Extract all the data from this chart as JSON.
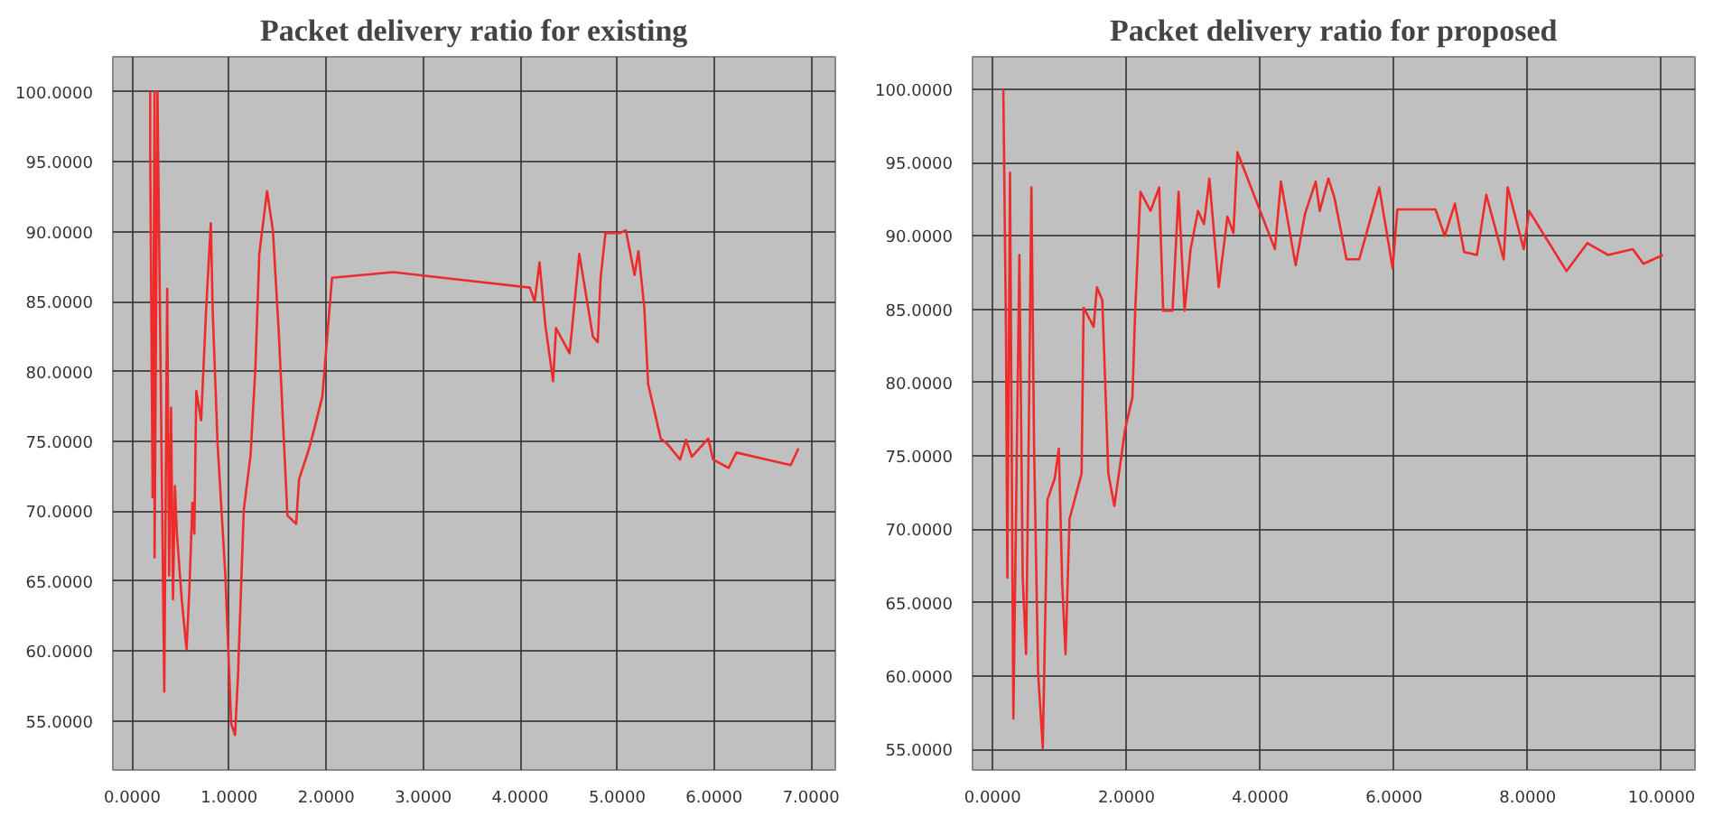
{
  "chart_data": [
    {
      "type": "line",
      "title": "Packet delivery ratio for existing",
      "grid": true,
      "marker": "none",
      "line_style": "solid",
      "xlim": [
        -0.2,
        7.25
      ],
      "ylim": [
        51.5,
        102.5
      ],
      "xticks": [
        {
          "value": 0,
          "label": "0.0000"
        },
        {
          "value": 1,
          "label": "1.0000"
        },
        {
          "value": 2,
          "label": "2.0000"
        },
        {
          "value": 3,
          "label": "3.0000"
        },
        {
          "value": 4,
          "label": "4.0000"
        },
        {
          "value": 5,
          "label": "5.0000"
        },
        {
          "value": 6,
          "label": "6.0000"
        },
        {
          "value": 7,
          "label": "7.0000"
        }
      ],
      "yticks": [
        {
          "value": 55,
          "label": "55.0000"
        },
        {
          "value": 60,
          "label": "60.0000"
        },
        {
          "value": 65,
          "label": "65.0000"
        },
        {
          "value": 70,
          "label": "70.0000"
        },
        {
          "value": 75,
          "label": "75.0000"
        },
        {
          "value": 80,
          "label": "80.0000"
        },
        {
          "value": 85,
          "label": "85.0000"
        },
        {
          "value": 90,
          "label": "90.0000"
        },
        {
          "value": 95,
          "label": "95.0000"
        },
        {
          "value": 100,
          "label": "100.0000"
        }
      ],
      "series": [
        {
          "color": "#ee2a2a",
          "x": [
            0.185,
            0.185,
            0.21,
            0.23,
            0.23,
            0.26,
            0.33,
            0.36,
            0.38,
            0.4,
            0.42,
            0.44,
            0.46,
            0.51,
            0.56,
            0.59,
            0.62,
            0.64,
            0.66,
            0.71,
            0.76,
            0.81,
            0.83,
            0.88,
            0.96,
            1.02,
            1.06,
            1.09,
            1.15,
            1.22,
            1.27,
            1.31,
            1.39,
            1.45,
            1.51,
            1.6,
            1.69,
            1.72,
            1.82,
            1.87,
            1.96,
            2.06,
            2.69,
            4.1,
            4.15,
            4.2,
            4.26,
            4.34,
            4.37,
            4.51,
            4.61,
            4.75,
            4.8,
            4.83,
            4.88,
            5.03,
            5.09,
            5.18,
            5.22,
            5.28,
            5.32,
            5.45,
            5.52,
            5.65,
            5.71,
            5.77,
            5.94,
            5.99,
            6.15,
            6.23,
            6.79,
            6.87
          ],
          "values": [
            100,
            95.7,
            71,
            100,
            66.7,
            100,
            57.1,
            85.9,
            65.4,
            77.4,
            63.7,
            71.8,
            68.4,
            63.7,
            60.1,
            64.6,
            70.6,
            68.4,
            78.6,
            76.5,
            84.2,
            90.6,
            84.2,
            74.8,
            65.4,
            54.8,
            54,
            58.2,
            70.1,
            74,
            80.3,
            88.4,
            92.9,
            90.1,
            82.9,
            69.7,
            69.1,
            72.3,
            74.4,
            75.7,
            78.2,
            86.7,
            87.1,
            86,
            85,
            87.8,
            83.3,
            79.3,
            83.1,
            81.3,
            88.4,
            82.5,
            82.1,
            86.7,
            89.9,
            89.9,
            90.1,
            86.9,
            88.6,
            84.6,
            79.1,
            75.2,
            74.8,
            73.7,
            75.1,
            73.9,
            75.2,
            73.7,
            73.1,
            74.2,
            73.3,
            74.5
          ]
        }
      ]
    },
    {
      "type": "line",
      "title": "Packet delivery ratio for proposed",
      "grid": true,
      "marker": "none",
      "line_style": "solid",
      "xlim": [
        -0.3,
        10.5
      ],
      "ylim": [
        53.6,
        102.2
      ],
      "xticks": [
        {
          "value": 0,
          "label": "0.0000"
        },
        {
          "value": 2,
          "label": "2.0000"
        },
        {
          "value": 4,
          "label": "4.0000"
        },
        {
          "value": 6,
          "label": "6.0000"
        },
        {
          "value": 8,
          "label": "8.0000"
        },
        {
          "value": 10,
          "label": "10.0000"
        }
      ],
      "yticks": [
        {
          "value": 55,
          "label": "55.0000"
        },
        {
          "value": 60,
          "label": "60.0000"
        },
        {
          "value": 65,
          "label": "65.0000"
        },
        {
          "value": 70,
          "label": "70.0000"
        },
        {
          "value": 75,
          "label": "75.0000"
        },
        {
          "value": 80,
          "label": "80.0000"
        },
        {
          "value": 85,
          "label": "85.0000"
        },
        {
          "value": 90,
          "label": "90.0000"
        },
        {
          "value": 95,
          "label": "95.0000"
        },
        {
          "value": 100,
          "label": "100.0000"
        }
      ],
      "series": [
        {
          "color": "#ee2a2a",
          "x": [
            0.16,
            0.2,
            0.22,
            0.26,
            0.31,
            0.35,
            0.4,
            0.45,
            0.5,
            0.54,
            0.58,
            0.62,
            0.68,
            0.75,
            0.82,
            0.93,
            0.99,
            1.04,
            1.09,
            1.15,
            1.33,
            1.36,
            1.51,
            1.56,
            1.64,
            1.73,
            1.82,
            1.98,
            2.09,
            2.13,
            2.21,
            2.36,
            2.49,
            2.55,
            2.69,
            2.78,
            2.87,
            2.96,
            3.07,
            3.16,
            3.24,
            3.38,
            3.51,
            3.6,
            3.66,
            4.22,
            4.31,
            4.53,
            4.67,
            4.83,
            4.89,
            5.02,
            5.11,
            5.29,
            5.48,
            5.78,
            5.98,
            6.05,
            6.62,
            6.76,
            6.91,
            7.05,
            7.24,
            7.38,
            7.64,
            7.7,
            7.94,
            8.02,
            8.58,
            8.89,
            9.2,
            9.57,
            9.73,
            10.02
          ],
          "values": [
            100,
            83.4,
            66.7,
            94.3,
            57.1,
            71.1,
            88.7,
            66.7,
            61.5,
            76.4,
            93.3,
            75.5,
            60.2,
            55.1,
            72,
            73.5,
            75.5,
            66.3,
            61.5,
            70.7,
            73.8,
            85.1,
            83.8,
            86.5,
            85.6,
            73.8,
            71.6,
            76.8,
            79,
            84.7,
            93,
            91.7,
            93.3,
            84.9,
            84.9,
            93,
            84.9,
            89.1,
            91.7,
            90.8,
            93.9,
            86.5,
            91.3,
            90.2,
            95.7,
            89.1,
            93.7,
            88,
            91.5,
            93.7,
            91.7,
            93.9,
            92.6,
            88.4,
            88.4,
            93.3,
            87.8,
            91.8,
            91.8,
            90,
            92.2,
            88.9,
            88.7,
            92.8,
            88.4,
            93.3,
            89.1,
            91.7,
            87.6,
            89.5,
            88.7,
            89.1,
            88.1,
            88.7
          ]
        }
      ]
    }
  ]
}
